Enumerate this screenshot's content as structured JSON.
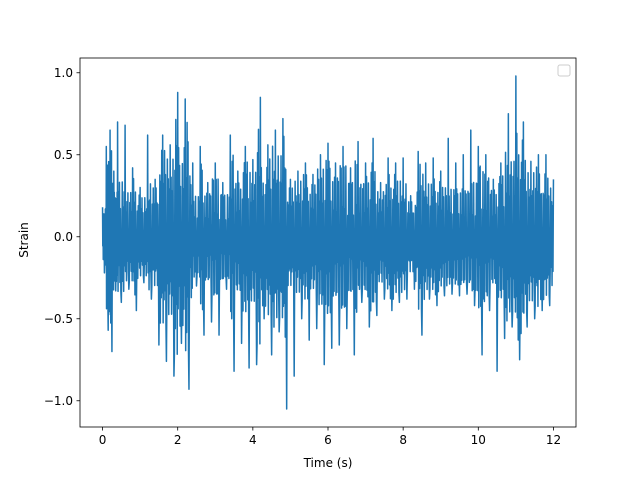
{
  "chart_data": {
    "type": "line",
    "title": "",
    "xlabel": "Time (s)",
    "ylabel": "Strain",
    "xlim": [
      -0.6,
      12.6
    ],
    "ylim": [
      -1.16,
      1.09
    ],
    "x_ticks": [
      0,
      2,
      4,
      6,
      8,
      10,
      12
    ],
    "x_tick_labels": [
      "0",
      "2",
      "4",
      "6",
      "8",
      "10",
      "12"
    ],
    "y_ticks": [
      -1.0,
      -0.5,
      0.0,
      0.5,
      1.0
    ],
    "y_tick_labels": [
      "−1.0",
      "−0.5",
      "0.0",
      "0.5",
      "1.0"
    ],
    "grid": false,
    "legend": {
      "placement": "top-right",
      "entries": []
    },
    "series": [
      {
        "color": "#1f77b4",
        "sampling": "dense noise-like signal, approximately 12 samples per second shown as envelope points",
        "x": [
          0.0,
          0.05,
          0.1,
          0.15,
          0.2,
          0.25,
          0.3,
          0.35,
          0.4,
          0.5,
          0.6,
          0.7,
          0.8,
          0.9,
          1.0,
          1.1,
          1.2,
          1.3,
          1.4,
          1.5,
          1.6,
          1.7,
          1.8,
          1.9,
          2.0,
          2.1,
          2.2,
          2.3,
          2.4,
          2.5,
          2.6,
          2.7,
          2.8,
          2.9,
          3.0,
          3.1,
          3.2,
          3.3,
          3.4,
          3.5,
          3.6,
          3.7,
          3.8,
          3.9,
          4.0,
          4.1,
          4.2,
          4.3,
          4.4,
          4.5,
          4.6,
          4.7,
          4.8,
          4.9,
          5.0,
          5.1,
          5.2,
          5.3,
          5.4,
          5.5,
          5.6,
          5.7,
          5.8,
          5.9,
          6.0,
          6.1,
          6.2,
          6.3,
          6.4,
          6.5,
          6.6,
          6.7,
          6.8,
          6.9,
          7.0,
          7.1,
          7.2,
          7.3,
          7.4,
          7.5,
          7.6,
          7.7,
          7.8,
          7.9,
          8.0,
          8.1,
          8.2,
          8.3,
          8.4,
          8.5,
          8.6,
          8.7,
          8.8,
          8.9,
          9.0,
          9.1,
          9.2,
          9.3,
          9.4,
          9.5,
          9.6,
          9.7,
          9.8,
          9.9,
          10.0,
          10.1,
          10.2,
          10.3,
          10.4,
          10.5,
          10.6,
          10.7,
          10.8,
          10.9,
          11.0,
          11.1,
          11.2,
          11.3,
          11.4,
          11.5,
          11.6,
          11.7,
          11.8,
          11.9,
          12.0
        ],
        "y": [
          0.18,
          -0.22,
          0.55,
          -0.57,
          0.65,
          -0.7,
          0.4,
          -0.33,
          0.7,
          -0.4,
          0.68,
          -0.32,
          0.42,
          -0.45,
          0.3,
          -0.28,
          0.62,
          -0.38,
          0.35,
          -0.66,
          0.62,
          -0.76,
          0.56,
          -0.85,
          0.88,
          -0.65,
          0.84,
          -0.93,
          0.45,
          -0.3,
          0.55,
          -0.6,
          0.33,
          -0.52,
          0.45,
          -0.6,
          0.33,
          -0.32,
          0.62,
          -0.82,
          0.4,
          -0.65,
          0.55,
          -0.8,
          0.47,
          -0.78,
          0.85,
          -0.5,
          0.56,
          -0.72,
          0.65,
          -0.58,
          0.72,
          -1.05,
          0.35,
          -0.85,
          0.4,
          -0.5,
          0.45,
          -0.63,
          0.38,
          -0.56,
          0.5,
          -0.78,
          0.57,
          -0.68,
          0.45,
          -0.66,
          0.55,
          -0.56,
          0.42,
          -0.72,
          0.58,
          -0.4,
          0.45,
          -0.55,
          0.6,
          -0.48,
          0.33,
          -0.38,
          0.48,
          -0.45,
          0.45,
          -0.4,
          0.48,
          -0.38,
          0.25,
          -0.32,
          0.52,
          -0.6,
          0.45,
          -0.38,
          0.48,
          -0.42,
          0.4,
          -0.36,
          0.6,
          -0.35,
          0.45,
          -0.36,
          0.5,
          -0.35,
          0.65,
          -0.42,
          0.55,
          -0.72,
          0.5,
          -0.45,
          0.35,
          -0.82,
          0.45,
          -0.62,
          0.75,
          -0.55,
          0.98,
          -0.75,
          0.7,
          -0.55,
          0.46,
          -0.5,
          0.5,
          -0.45,
          0.5,
          -0.42,
          0.35
        ]
      }
    ]
  }
}
